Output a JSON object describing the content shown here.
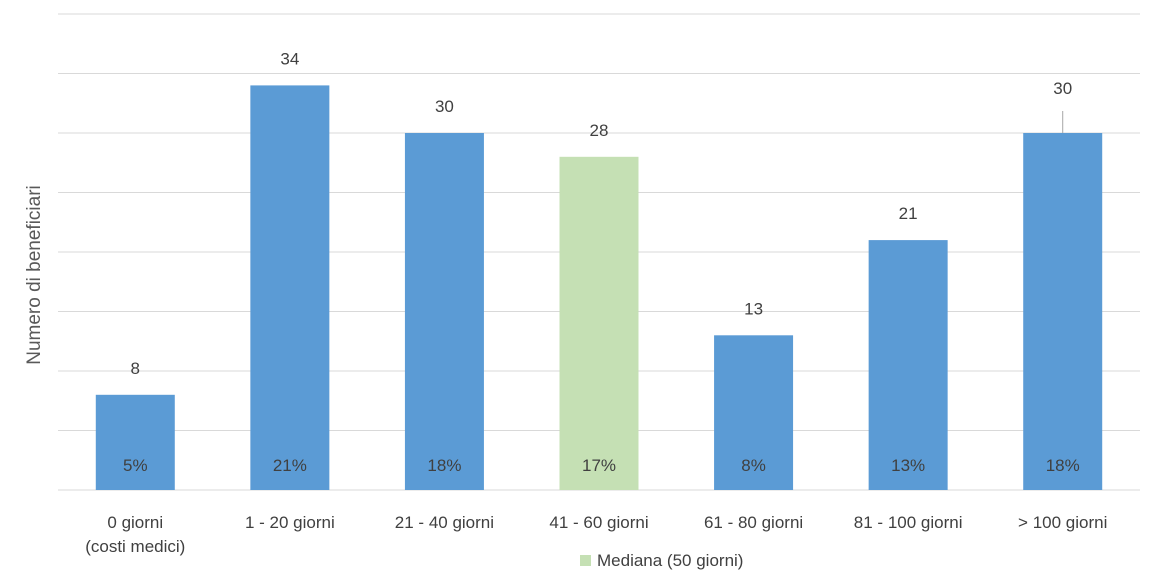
{
  "chart_data": {
    "type": "bar",
    "ylabel": "Numero di beneficiari",
    "xlabel": "",
    "categories": [
      [
        "0 giorni",
        "(costi medici)"
      ],
      [
        "1 - 20 giorni"
      ],
      [
        "21 - 40 giorni"
      ],
      [
        "41 - 60 giorni"
      ],
      [
        "61 - 80 giorni"
      ],
      [
        "81 - 100 giorni"
      ],
      [
        "> 100  giorni"
      ]
    ],
    "values": [
      8,
      34,
      30,
      28,
      13,
      21,
      30
    ],
    "percent_labels": [
      "5%",
      "21%",
      "18%",
      "17%",
      "8%",
      "13%",
      "18%"
    ],
    "highlight_index": 3,
    "ylim": [
      0,
      40
    ],
    "y_gridline_step": 5,
    "colors": {
      "default": "#5b9bd5",
      "highlight": "#c5e0b4",
      "grid": "#d9d9d9"
    },
    "legend": {
      "label": "Mediana (50 giorni)",
      "position": "bottom",
      "color": "#c5e0b4"
    },
    "grid": true
  }
}
